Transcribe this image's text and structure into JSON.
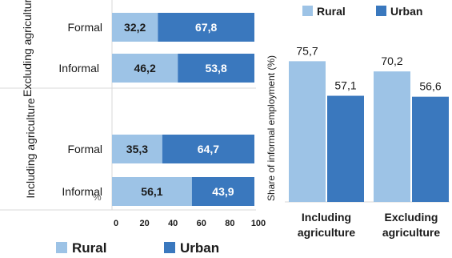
{
  "colors": {
    "rural": "#9DC3E6",
    "urban": "#3A78BE",
    "grid": "#d9d9d9",
    "text": "#1a1a1a"
  },
  "chart_data": [
    {
      "type": "bar",
      "orientation": "horizontal",
      "stacked": true,
      "groups": [
        {
          "label": "Excluding agriculture",
          "categories": [
            "Formal",
            "Informal"
          ]
        },
        {
          "label": "Including agriculture",
          "categories": [
            "Formal",
            "Informal"
          ]
        }
      ],
      "series": [
        {
          "name": "Rural",
          "values": [
            32.2,
            46.2,
            35.3,
            56.1
          ],
          "labels": [
            "32,2",
            "46,2",
            "35,3",
            "56,1"
          ]
        },
        {
          "name": "Urban",
          "values": [
            67.8,
            53.8,
            64.7,
            43.9
          ],
          "labels": [
            "67,8",
            "53,8",
            "64,7",
            "43,9"
          ]
        }
      ],
      "xlim": [
        0,
        100
      ],
      "xticks": [
        "0",
        "20",
        "40",
        "60",
        "80",
        "100"
      ],
      "xlabel": "%",
      "legend": "bottom"
    },
    {
      "type": "bar",
      "categories": [
        "Including agriculture",
        "Excluding agriculture"
      ],
      "series": [
        {
          "name": "Rural",
          "values": [
            75.7,
            70.2
          ],
          "labels": [
            "75,7",
            "70,2"
          ]
        },
        {
          "name": "Urban",
          "values": [
            57.1,
            56.6
          ],
          "labels": [
            "57,1",
            "56,6"
          ]
        }
      ],
      "ylabel": "Share of informal employment (%)",
      "ylim": [
        0,
        100
      ],
      "legend": "top"
    }
  ]
}
